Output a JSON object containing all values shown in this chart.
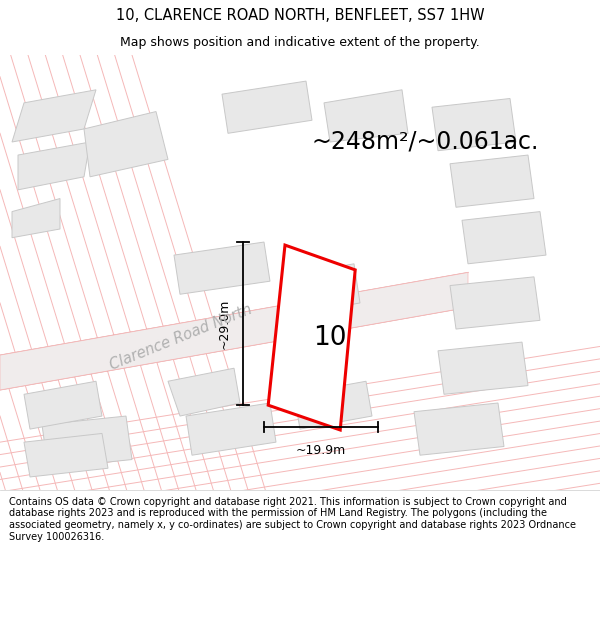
{
  "title": "10, CLARENCE ROAD NORTH, BENFLEET, SS7 1HW",
  "subtitle": "Map shows position and indicative extent of the property.",
  "area_text": "~248m²/~0.061ac.",
  "label_10": "10",
  "dim_height": "~29.0m",
  "dim_width": "~19.9m",
  "road_label": "Clarence Road North",
  "footer": "Contains OS data © Crown copyright and database right 2021. This information is subject to Crown copyright and database rights 2023 and is reproduced with the permission of HM Land Registry. The polygons (including the associated geometry, namely x, y co-ordinates) are subject to Crown copyright and database rights 2023 Ordnance Survey 100026316.",
  "bg_color": "#ffffff",
  "map_bg": "#ffffff",
  "building_color": "#e8e8e8",
  "building_edge": "#c8c8c8",
  "red_line_color": "#f5b8b8",
  "red_polygon": "#ee0000",
  "title_fontsize": 10.5,
  "subtitle_fontsize": 9,
  "footer_fontsize": 7,
  "area_fontsize": 17,
  "label_fontsize": 19,
  "dim_fontsize": 9,
  "road_fontsize": 10.5
}
